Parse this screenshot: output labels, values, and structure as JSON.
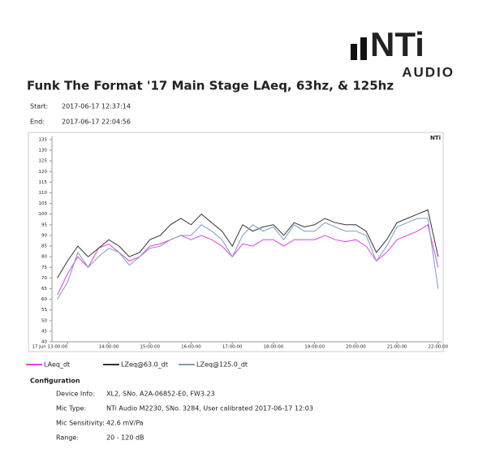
{
  "header": {
    "logo": "NTi",
    "logo_sub": "AUDIO"
  },
  "title": "Funk The Format '17 Main Stage LAeq, 63hz, & 125hz",
  "info": [
    [
      "Start:",
      "2017-06-17 12:37:14"
    ],
    [
      "End:",
      "2017-06-17 22:04:56"
    ]
  ],
  "chart_data": {
    "type": "line",
    "watermark": "NTi",
    "x": [
      "12:45:00",
      "13:00:00",
      "13:15:00",
      "13:30:00",
      "13:45:00",
      "14:00:00",
      "14:15:00",
      "14:30:00",
      "14:45:00",
      "15:00:00",
      "15:15:00",
      "15:30:00",
      "15:45:00",
      "16:00:00",
      "16:15:00",
      "16:30:00",
      "16:45:00",
      "17:00:00",
      "17:15:00",
      "17:30:00",
      "17:45:00",
      "18:00:00",
      "18:15:00",
      "18:30:00",
      "18:45:00",
      "19:00:00",
      "19:15:00",
      "19:30:00",
      "19:45:00",
      "20:00:00",
      "20:15:00",
      "20:30:00",
      "20:45:00",
      "21:00:00",
      "21:15:00",
      "21:30:00",
      "21:45:00",
      "22:00:00"
    ],
    "series": [
      {
        "name": "LAeq_dt",
        "color": "#e040e0",
        "values": [
          62,
          72,
          80,
          75,
          84,
          86,
          82,
          78,
          80,
          85,
          86,
          88,
          90,
          88,
          90,
          88,
          85,
          80,
          86,
          85,
          88,
          88,
          85,
          88,
          88,
          88,
          90,
          88,
          87,
          88,
          85,
          78,
          82,
          88,
          90,
          92,
          95,
          75
        ]
      },
      {
        "name": "LZeq@63.0_dt",
        "color": "#333333",
        "values": [
          70,
          78,
          85,
          80,
          84,
          88,
          85,
          80,
          82,
          88,
          90,
          95,
          98,
          95,
          100,
          96,
          92,
          85,
          95,
          92,
          94,
          95,
          90,
          96,
          94,
          95,
          98,
          96,
          95,
          95,
          92,
          82,
          88,
          96,
          98,
          100,
          102,
          80
        ]
      },
      {
        "name": "LZeq@125.0_dt",
        "color": "#7a9cc6",
        "values": [
          60,
          68,
          82,
          75,
          80,
          84,
          82,
          76,
          80,
          84,
          85,
          88,
          90,
          90,
          95,
          92,
          88,
          80,
          90,
          95,
          92,
          94,
          88,
          95,
          92,
          92,
          96,
          94,
          92,
          92,
          90,
          78,
          85,
          94,
          96,
          98,
          98,
          65
        ]
      }
    ],
    "xlim": [
      "12:37:14",
      "22:04:56"
    ],
    "xticks": [
      {
        "value": "13:00:00",
        "label": "17 Jun 13:00:00"
      },
      "14:00:00",
      "15:00:00",
      "16:00:00",
      "17:00:00",
      "18:00:00",
      "19:00:00",
      "20:00:00",
      "21:00:00",
      "22:00:00"
    ],
    "ylim": [
      40,
      135
    ],
    "yticks": [
      40,
      45,
      50,
      55,
      60,
      65,
      70,
      75,
      80,
      85,
      90,
      95,
      100,
      105,
      110,
      115,
      120,
      125,
      130,
      135
    ],
    "grid": false
  },
  "configuration": {
    "title": "Configuration",
    "rows": [
      [
        "Device Info:",
        "XL2, SNo. A2A-06852-E0, FW3.23"
      ],
      [
        "Mic Type:",
        "NTi Audio M2230, SNo. 3284, User calibrated 2017-06-17  12:03"
      ],
      [
        "Mic Sensitivity:",
        "42.6 mV/Pa"
      ],
      [
        "Range:",
        "20 - 120 dB"
      ]
    ]
  }
}
